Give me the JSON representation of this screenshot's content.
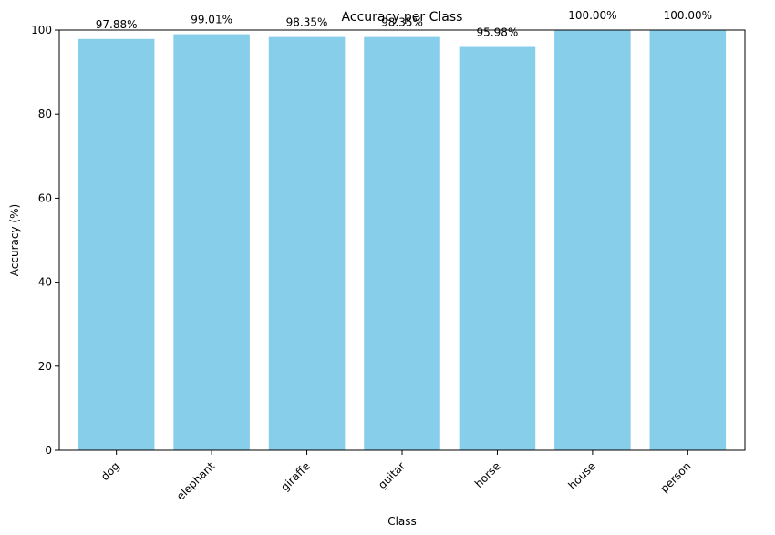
{
  "chart_data": {
    "type": "bar",
    "title": "Accuracy per Class",
    "xlabel": "Class",
    "ylabel": "Accuracy (%)",
    "categories": [
      "dog",
      "elephant",
      "giraffe",
      "guitar",
      "horse",
      "house",
      "person"
    ],
    "values": [
      97.88,
      99.01,
      98.35,
      98.35,
      95.98,
      100.0,
      100.0
    ],
    "value_labels": [
      "97.88%",
      "99.01%",
      "98.35%",
      "98.35%",
      "95.98%",
      "100.00%",
      "100.00%"
    ],
    "ylim": [
      0,
      100
    ],
    "yticks": [
      0,
      20,
      40,
      60,
      80,
      100
    ],
    "grid": false,
    "bar_color": "#87ceeb",
    "tick_label_rotation": 45
  }
}
